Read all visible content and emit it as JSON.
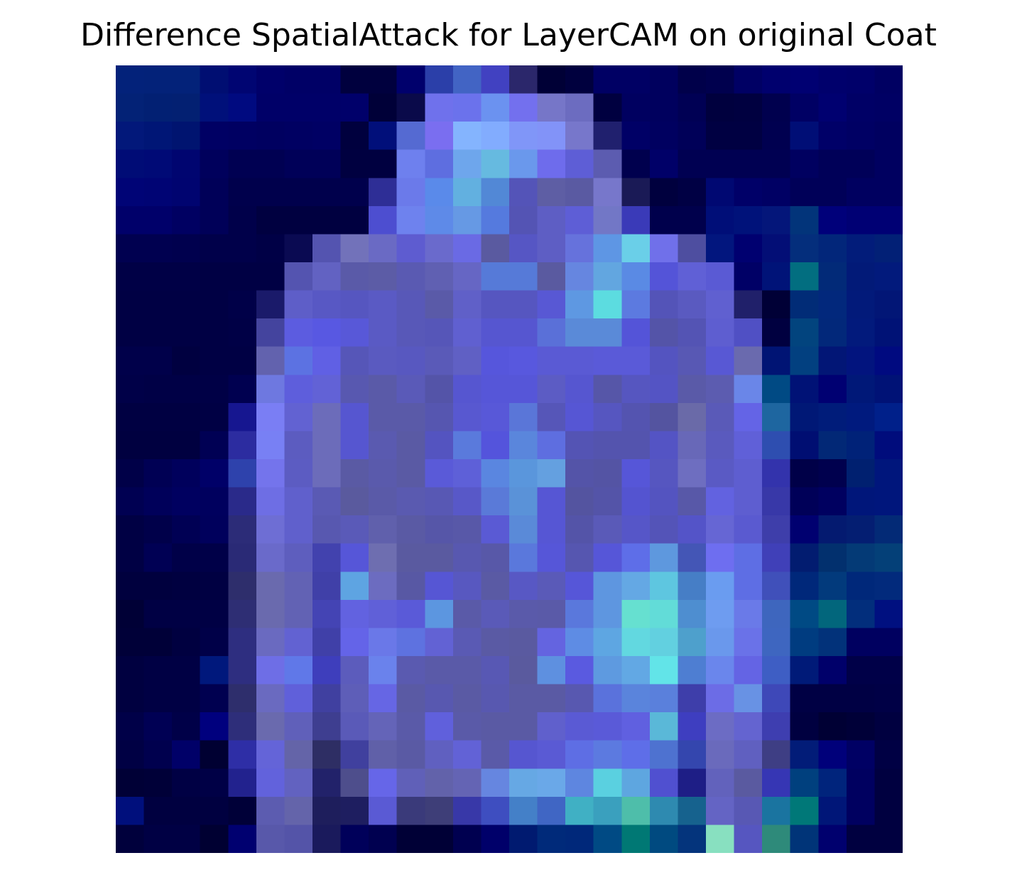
{
  "title": "Difference SpatialAttack for LayerCAM on original Coat",
  "chart_data": {
    "type": "heatmap",
    "title": "Difference SpatialAttack for LayerCAM on original Coat",
    "xlabel": "",
    "ylabel": "",
    "axes_visible": false,
    "grid": false,
    "rows": 28,
    "cols": 28,
    "colors": [
      [
        "#03227a",
        "#032279",
        "#032279",
        "#000e72",
        "#000572",
        "#00006a",
        "#000066",
        "#000066",
        "#00003e",
        "#00003e",
        "#00006c",
        "#2b3fa9",
        "#4264c4",
        "#4141c1",
        "#2b276b",
        "#000036",
        "#00003e",
        "#000064",
        "#000064",
        "#00005e",
        "#00004a",
        "#00004e",
        "#000064",
        "#00006e",
        "#000072",
        "#00006c",
        "#00006a",
        "#000062"
      ],
      [
        "#032276",
        "#022073",
        "#032072",
        "#00107a",
        "#000a80",
        "#000068",
        "#000068",
        "#000068",
        "#00006a",
        "#000038",
        "#0a0a4a",
        "#6f71ec",
        "#6b72ec",
        "#6b92f0",
        "#7370ee",
        "#7676c8",
        "#6c6cc0",
        "#000040",
        "#000060",
        "#00005e",
        "#000054",
        "#00003e",
        "#000040",
        "#00004e",
        "#000064",
        "#000070",
        "#000066",
        "#000064"
      ],
      [
        "#02187a",
        "#001676",
        "#001470",
        "#000064",
        "#000062",
        "#000060",
        "#000062",
        "#000064",
        "#00003e",
        "#010f7a",
        "#556ad2",
        "#7a6ef0",
        "#84b4fe",
        "#82acfe",
        "#8096f8",
        "#8293f8",
        "#7777cb",
        "#20206e",
        "#000066",
        "#000060",
        "#000058",
        "#000042",
        "#000042",
        "#000050",
        "#000e76",
        "#000068",
        "#000064",
        "#000060"
      ],
      [
        "#000c76",
        "#000a76",
        "#000570",
        "#00005c",
        "#000052",
        "#000052",
        "#000058",
        "#000058",
        "#000040",
        "#000040",
        "#6e80ee",
        "#5e6ee0",
        "#6ea6ec",
        "#66bae0",
        "#6a98ec",
        "#6e6cec",
        "#5e5ed6",
        "#5c5cb0",
        "#00004e",
        "#000068",
        "#000052",
        "#000052",
        "#000052",
        "#000052",
        "#000060",
        "#000058",
        "#000058",
        "#000060"
      ],
      [
        "#000476",
        "#000474",
        "#000470",
        "#000058",
        "#00004c",
        "#00004c",
        "#00004c",
        "#00004c",
        "#00004c",
        "#2e2e96",
        "#6b7aea",
        "#5a8aea",
        "#62b0e0",
        "#5288d6",
        "#5454b8",
        "#5e5ea4",
        "#5a5aa2",
        "#7777cb",
        "#1a1a56",
        "#00003e",
        "#000044",
        "#000872",
        "#000068",
        "#000064",
        "#000058",
        "#000058",
        "#000060",
        "#000060"
      ],
      [
        "#00006a",
        "#00006a",
        "#000062",
        "#000058",
        "#00004a",
        "#000040",
        "#000040",
        "#000040",
        "#000040",
        "#4d4ed0",
        "#6e82ee",
        "#5e8ae8",
        "#6699e4",
        "#557ade",
        "#5454b4",
        "#5e5ec4",
        "#5e5ed6",
        "#7277c6",
        "#3a3ab8",
        "#00004c",
        "#00004c",
        "#000e78",
        "#00127a",
        "#04167a",
        "#02347a",
        "#00007a",
        "#000074",
        "#000074"
      ],
      [
        "#000050",
        "#000050",
        "#00004e",
        "#00004a",
        "#00004a",
        "#000046",
        "#0a0a52",
        "#5454b0",
        "#7272ba",
        "#6a6ac4",
        "#5e5cd0",
        "#6a6acc",
        "#6a6ae4",
        "#5a5aa0",
        "#5656c4",
        "#5e5ec4",
        "#6672dc",
        "#5e96e4",
        "#6acfe8",
        "#7070ea",
        "#4e4ea0",
        "#02167e",
        "#000070",
        "#030e76",
        "#042e7c",
        "#02267a",
        "#021c7a",
        "#022076"
      ],
      [
        "#000046",
        "#000046",
        "#000046",
        "#000044",
        "#000044",
        "#000044",
        "#5454b0",
        "#6262c2",
        "#5a5aa8",
        "#5c5ca6",
        "#5a5ab2",
        "#6060b2",
        "#6666c4",
        "#567ad8",
        "#567ad8",
        "#5a5aa0",
        "#6686e0",
        "#62a6e0",
        "#5a8ae4",
        "#5454d8",
        "#6060d6",
        "#5a5ad4",
        "#000066",
        "#001378",
        "#026e80",
        "#022a78",
        "#021a78",
        "#021a7c"
      ],
      [
        "#000044",
        "#000044",
        "#000044",
        "#000044",
        "#000048",
        "#1a1a6a",
        "#5e5ec8",
        "#5858c4",
        "#5656c0",
        "#5a5ac4",
        "#5858b8",
        "#5a5aa8",
        "#6060c8",
        "#5656c0",
        "#5656c0",
        "#5858d4",
        "#5e98e2",
        "#5cdce0",
        "#5c7ae0",
        "#5454b8",
        "#5a5ac0",
        "#6060d0",
        "#20206a",
        "#000036",
        "#012c77",
        "#02287c",
        "#021a7a",
        "#021676"
      ],
      [
        "#000044",
        "#000044",
        "#000044",
        "#000044",
        "#000046",
        "#44449e",
        "#5c5ce0",
        "#5858e2",
        "#5858d8",
        "#5a5ac4",
        "#5858b8",
        "#5656b8",
        "#6060d0",
        "#5656d0",
        "#5656d0",
        "#5a70d8",
        "#5a8ad8",
        "#5a8ad8",
        "#5454d8",
        "#5454a8",
        "#5454b4",
        "#5e5ed0",
        "#5050c4",
        "#000040",
        "#02447e",
        "#02287a",
        "#021a7c",
        "#001276"
      ],
      [
        "#00004a",
        "#00004a",
        "#000040",
        "#000044",
        "#000044",
        "#6262ae",
        "#5c72e2",
        "#6060e4",
        "#5656b8",
        "#5a5ac0",
        "#5858c0",
        "#5a5ab8",
        "#6060c4",
        "#5656dc",
        "#5858de",
        "#5a5ad4",
        "#5a5ad4",
        "#5a5ad8",
        "#5a5ad8",
        "#5454c0",
        "#5858b4",
        "#5858d4",
        "#6a6aae",
        "#001474",
        "#024080",
        "#021676",
        "#02147e",
        "#000a80"
      ],
      [
        "#000048",
        "#000046",
        "#000046",
        "#000046",
        "#000050",
        "#6e78e0",
        "#5e5edc",
        "#6262d6",
        "#5858b0",
        "#5a5aa8",
        "#5a5ab8",
        "#5454a8",
        "#5656d0",
        "#5656d8",
        "#5656d8",
        "#5c5cc4",
        "#5656d0",
        "#5656a8",
        "#5656c0",
        "#5454c4",
        "#5a5aa8",
        "#5c5cb0",
        "#6a86e8",
        "#004a84",
        "#001276",
        "#000072",
        "#001878",
        "#001276"
      ],
      [
        "#000042",
        "#000042",
        "#000042",
        "#000044",
        "#161690",
        "#7a7ef4",
        "#6262d2",
        "#6c6cba",
        "#5656d0",
        "#5a5aa8",
        "#5a5aa8",
        "#5656b0",
        "#5858d0",
        "#5858d8",
        "#5a76d8",
        "#5656b8",
        "#5656d4",
        "#5656c0",
        "#5454b0",
        "#5454a0",
        "#6a6aa8",
        "#5a5ab8",
        "#6464e6",
        "#1e66a0",
        "#001876",
        "#001c7a",
        "#001a7e",
        "#00208a"
      ],
      [
        "#000040",
        "#000040",
        "#000040",
        "#000054",
        "#2c2ca0",
        "#7880f4",
        "#5c5cc0",
        "#6c6cba",
        "#5656d0",
        "#5a5ab0",
        "#5a5aa4",
        "#5454c0",
        "#5a7adc",
        "#5454dc",
        "#5a86dc",
        "#5e6ee0",
        "#5454b4",
        "#5454ae",
        "#5454ae",
        "#5454c4",
        "#6868b8",
        "#5a5abe",
        "#6060d8",
        "#2e4eb0",
        "#000e72",
        "#022876",
        "#002278",
        "#000c7c"
      ],
      [
        "#000048",
        "#000054",
        "#00005c",
        "#000068",
        "#2e42ac",
        "#7474ec",
        "#5c5cc2",
        "#6c6cba",
        "#5a5aa4",
        "#5a5aac",
        "#5a5aa4",
        "#5a5ad8",
        "#5e60d8",
        "#5a86e0",
        "#5a96dc",
        "#64a0e0",
        "#5454a8",
        "#5454a4",
        "#5656d8",
        "#5656c0",
        "#6e6ec0",
        "#5a5ac4",
        "#5e5ed0",
        "#3333ac",
        "#000048",
        "#00004e",
        "#002070",
        "#00167c"
      ],
      [
        "#000052",
        "#00005a",
        "#000060",
        "#00005e",
        "#2a2a8a",
        "#6e6ee4",
        "#6060cc",
        "#5a5ab4",
        "#5a5a9e",
        "#5a5aa8",
        "#5a5ab0",
        "#5858b4",
        "#5858c8",
        "#5a7ad8",
        "#5a92d8",
        "#5656d4",
        "#5454a0",
        "#5454a8",
        "#5454d0",
        "#5454c0",
        "#5858a8",
        "#6262e0",
        "#5e5ed0",
        "#3838a8",
        "#000058",
        "#000060",
        "#00167a",
        "#00167c"
      ],
      [
        "#000044",
        "#00004a",
        "#000054",
        "#00005c",
        "#2c2c78",
        "#6e6ed4",
        "#6060cc",
        "#5858b0",
        "#5a5ab8",
        "#6060ac",
        "#5a5aa4",
        "#5656a8",
        "#5858a8",
        "#5a5ad4",
        "#5a8ad8",
        "#5656d4",
        "#5454a8",
        "#5a5ab8",
        "#5656c8",
        "#5454b8",
        "#5454c8",
        "#6666d4",
        "#5a5ad0",
        "#3e3eaa",
        "#000070",
        "#041a70",
        "#041e72",
        "#032a76"
      ],
      [
        "#000044",
        "#000054",
        "#000048",
        "#000048",
        "#2a2a76",
        "#6a6aca",
        "#5e5ebe",
        "#4242ae",
        "#5656d8",
        "#6e6eb0",
        "#5a5aa0",
        "#5a5aa0",
        "#5858b0",
        "#5858a8",
        "#5a78dc",
        "#5656d8",
        "#5656b0",
        "#5656d8",
        "#5e6ee8",
        "#5e98de",
        "#4456b6",
        "#6e6ef0",
        "#5e6ee4",
        "#4040b8",
        "#021c70",
        "#02306e",
        "#043a76",
        "#044078"
      ],
      [
        "#00003e",
        "#00003e",
        "#000040",
        "#000042",
        "#2e2e6c",
        "#6a6aae",
        "#6262b4",
        "#4040a8",
        "#5ea4e2",
        "#6c6cc0",
        "#5858a4",
        "#5656d4",
        "#5858c0",
        "#5a5aa4",
        "#5858c4",
        "#5a5ab8",
        "#5656d8",
        "#5e96e0",
        "#64a8e4",
        "#5ec6e0",
        "#467ec6",
        "#6a9cf0",
        "#5e6ee4",
        "#4050ba",
        "#00287a",
        "#023a7c",
        "#00287a",
        "#022a7c"
      ],
      [
        "#000036",
        "#000044",
        "#000044",
        "#000044",
        "#2e2e74",
        "#6a6aae",
        "#6262b4",
        "#4444b4",
        "#6262e0",
        "#6060d8",
        "#5a5ad8",
        "#5c96e0",
        "#5a5aa8",
        "#5a5ab8",
        "#5a5aaa",
        "#5a5aa8",
        "#5a78dc",
        "#5e96e0",
        "#66e0d0",
        "#62dcd8",
        "#4e8ed0",
        "#6e9cf0",
        "#6a7ae8",
        "#3e66be",
        "#004a84",
        "#02667c",
        "#022e7c",
        "#001080"
      ],
      [
        "#000038",
        "#000038",
        "#000040",
        "#000048",
        "#2e2e80",
        "#6a6ac0",
        "#6262d2",
        "#4040a8",
        "#6464e8",
        "#6a78e8",
        "#5e72e0",
        "#6262d4",
        "#5a5ab4",
        "#5a5aa4",
        "#5a5aa0",
        "#6464e0",
        "#5e8ce4",
        "#5ea6e2",
        "#62d8e0",
        "#62d0e0",
        "#4ea0cc",
        "#6a98ec",
        "#6a72e8",
        "#3e66c0",
        "#003c80",
        "#02327a",
        "#000060",
        "#000060"
      ],
      [
        "#000040",
        "#000044",
        "#000044",
        "#00187c",
        "#2e2e80",
        "#6e6ee6",
        "#6078e8",
        "#3e3ebc",
        "#5c5cbc",
        "#6a82ec",
        "#5a5ab0",
        "#5a5aa8",
        "#5a5aa8",
        "#5858b4",
        "#5a5a9e",
        "#5e90e0",
        "#5a5ae0",
        "#5e9ae0",
        "#62a8e4",
        "#62e4e8",
        "#4e7ed2",
        "#6a86ec",
        "#6464e4",
        "#3e5ec4",
        "#001a78",
        "#00006a",
        "#000048",
        "#000048"
      ],
      [
        "#000040",
        "#000044",
        "#000044",
        "#000050",
        "#2e2e6c",
        "#6a6ac0",
        "#6060da",
        "#4040a0",
        "#5e5eb8",
        "#6666e4",
        "#5a5aa4",
        "#5858b0",
        "#5a5aa4",
        "#5858b0",
        "#5a5aa4",
        "#5a5aa4",
        "#5858b0",
        "#5a72dc",
        "#5a84dc",
        "#5a80dc",
        "#3e3eaa",
        "#6c6ce6",
        "#6892e4",
        "#3e48b8",
        "#000044",
        "#000044",
        "#000044",
        "#000046"
      ],
      [
        "#000048",
        "#000054",
        "#000048",
        "#00007e",
        "#2e2e7a",
        "#6a6aae",
        "#6060ba",
        "#3e3e90",
        "#5a5ab8",
        "#6464b8",
        "#5a5aa8",
        "#6060dc",
        "#5a5aa8",
        "#5a5aa4",
        "#5a5aa4",
        "#6060cc",
        "#5a5ad4",
        "#5a5ad8",
        "#6060e0",
        "#5ab8d8",
        "#3e3ec0",
        "#6c6cc4",
        "#6464d0",
        "#3e3eb0",
        "#000040",
        "#000034",
        "#000038",
        "#000040"
      ],
      [
        "#000044",
        "#00004e",
        "#000068",
        "#000032",
        "#2e2ea6",
        "#6464d8",
        "#6464a8",
        "#2e2e64",
        "#40409e",
        "#6060a8",
        "#5a5aa4",
        "#6060c0",
        "#6262d6",
        "#5a5aa8",
        "#5656d0",
        "#5a5ad4",
        "#5e6ee4",
        "#5c7ae0",
        "#5e6ee8",
        "#4e72d0",
        "#3446ae",
        "#6a6abc",
        "#6060c0",
        "#3e3e84",
        "#021c78",
        "#00007a",
        "#000064",
        "#000044"
      ],
      [
        "#000036",
        "#000038",
        "#000044",
        "#000046",
        "#22228e",
        "#6262dc",
        "#6262c0",
        "#22226a",
        "#4e4e8c",
        "#6666e8",
        "#6060b8",
        "#6262aa",
        "#6464b4",
        "#6686e0",
        "#66a8e4",
        "#6aa8e8",
        "#5e86e0",
        "#5ad0e0",
        "#5ea6e0",
        "#5050d0",
        "#1e1e86",
        "#6262bc",
        "#5a5aa0",
        "#3636b4",
        "#00407e",
        "#00247c",
        "#000060",
        "#000040"
      ],
      [
        "#000f7c",
        "#000040",
        "#000040",
        "#000040",
        "#000038",
        "#5c5cb0",
        "#6464aa",
        "#1e1e5c",
        "#1e1e60",
        "#5a5ad4",
        "#3a3a7a",
        "#3e3e78",
        "#3838a8",
        "#3e4ec0",
        "#4480c8",
        "#4066c4",
        "#40b0c4",
        "#3aa0be",
        "#4ebeaa",
        "#2e8ab0",
        "#16628e",
        "#6464c4",
        "#5858b4",
        "#1a74a0",
        "#007878",
        "#001678",
        "#000060",
        "#000040"
      ],
      [
        "#00003c",
        "#000044",
        "#000044",
        "#000032",
        "#000070",
        "#5858aa",
        "#5454a8",
        "#1a1a5c",
        "#00005a",
        "#000050",
        "#000036",
        "#000036",
        "#000050",
        "#00006a",
        "#001a70",
        "#002a7a",
        "#00287a",
        "#004a84",
        "#007874",
        "#004a80",
        "#04347c",
        "#88e0c0",
        "#5656c0",
        "#2e8a7a",
        "#003478",
        "#00006e",
        "#000040",
        "#000040"
      ]
    ]
  }
}
